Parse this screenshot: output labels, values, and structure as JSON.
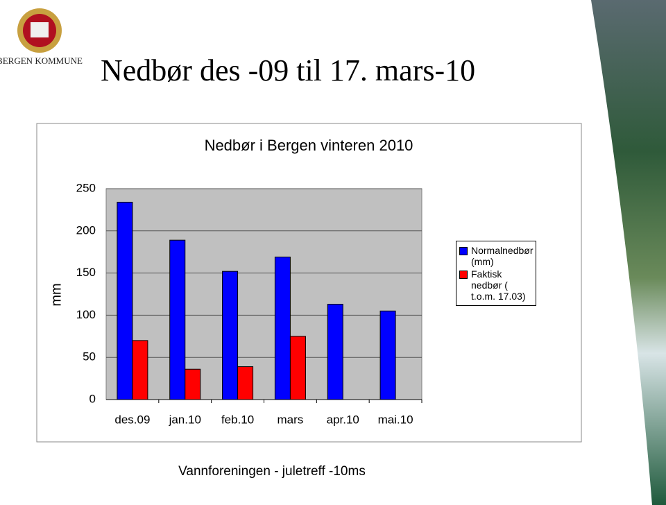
{
  "slide": {
    "logo_text": "BERGEN KOMMUNE",
    "title": "Nedbør des -09 til 17. mars-10",
    "footer": "Vannforeningen - juletreff -10ms"
  },
  "chart_data": {
    "type": "bar",
    "title": "Nedbør i Bergen vinteren 2010",
    "y_label": "mm",
    "categories": [
      "des.09",
      "jan.10",
      "feb.10",
      "mars",
      "apr.10",
      "mai.10"
    ],
    "series": [
      {
        "name": "Normalnedbør (mm)",
        "color": "#0000ff",
        "values": [
          234,
          189,
          152,
          169,
          113,
          105
        ]
      },
      {
        "name": "Faktisk nedbør ( t.o.m. 17.03)",
        "color": "#ff0000",
        "values": [
          70,
          36,
          39,
          75,
          null,
          null
        ]
      }
    ],
    "ylim": [
      0,
      250
    ],
    "yticks": [
      0,
      50,
      100,
      150,
      200,
      250
    ],
    "grid": true,
    "legend": "right",
    "plot_background": "#c0c0c0"
  }
}
